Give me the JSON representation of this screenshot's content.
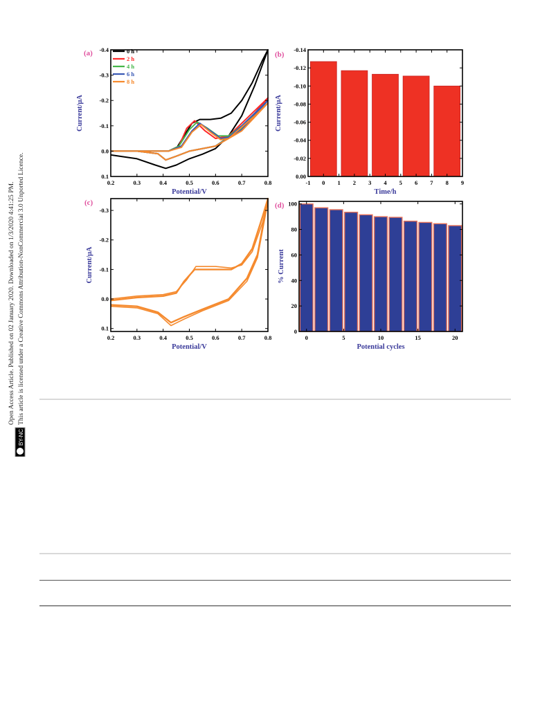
{
  "side_notice": {
    "line1": "Open Access Article. Published on 02 January 2020. Downloaded on 1/3/2020 4:41:25 PM.",
    "line2": "This article is licensed under a Creative Commons Attribution-NonCommercial 3.0 Unported Licence.",
    "license_badge": "cc BY-NC"
  },
  "colors": {
    "axis": "#000000",
    "axis_label": "#3a3a9a",
    "panel_letter": "#e0509e",
    "bar_red": "#ee3124",
    "bar_blue": "#2e3f96",
    "bar_blue_edge": "#e8735a",
    "cv_0h": "#000000",
    "cv_2h": "#ff2a2a",
    "cv_4h": "#45b64a",
    "cv_6h": "#3a5ab5",
    "cv_8h": "#f58a2e",
    "cv_cycles": "#f58a2e"
  },
  "chart_data": [
    {
      "panel": "(a)",
      "type": "line",
      "xlabel": "Potential/V",
      "ylabel": "Current/μA",
      "xlim": [
        0.2,
        0.8
      ],
      "ylim": [
        0.1,
        -0.4
      ],
      "xticks": [
        "0.2",
        "0.3",
        "0.4",
        "0.5",
        "0.6",
        "0.7",
        "0.8"
      ],
      "yticks": [
        "-0.4",
        "-0.3",
        "-0.2",
        "-0.1",
        "0.0",
        "0.1"
      ],
      "legend_position": "top-left",
      "series": [
        {
          "name": "0 h",
          "color_key": "cv_0h",
          "points": [
            [
              0.2,
              0.015
            ],
            [
              0.3,
              0.03
            ],
            [
              0.37,
              0.055
            ],
            [
              0.41,
              0.068
            ],
            [
              0.45,
              0.055
            ],
            [
              0.5,
              0.03
            ],
            [
              0.55,
              0.012
            ],
            [
              0.6,
              -0.01
            ],
            [
              0.65,
              -0.06
            ],
            [
              0.7,
              -0.14
            ],
            [
              0.75,
              -0.26
            ],
            [
              0.8,
              -0.4
            ],
            [
              0.78,
              -0.36
            ],
            [
              0.74,
              -0.27
            ],
            [
              0.7,
              -0.2
            ],
            [
              0.66,
              -0.15
            ],
            [
              0.62,
              -0.13
            ],
            [
              0.58,
              -0.125
            ],
            [
              0.54,
              -0.125
            ],
            [
              0.51,
              -0.11
            ],
            [
              0.48,
              -0.06
            ],
            [
              0.45,
              -0.01
            ],
            [
              0.42,
              0.0
            ],
            [
              0.35,
              0.0
            ],
            [
              0.2,
              0.0
            ]
          ]
        },
        {
          "name": "2 h",
          "color_key": "cv_2h",
          "points": [
            [
              0.2,
              0.0
            ],
            [
              0.3,
              0.0
            ],
            [
              0.38,
              0.01
            ],
            [
              0.41,
              0.035
            ],
            [
              0.45,
              0.02
            ],
            [
              0.5,
              0.0
            ],
            [
              0.6,
              -0.02
            ],
            [
              0.7,
              -0.09
            ],
            [
              0.8,
              -0.21
            ],
            [
              0.75,
              -0.16
            ],
            [
              0.7,
              -0.11
            ],
            [
              0.65,
              -0.06
            ],
            [
              0.6,
              -0.05
            ],
            [
              0.56,
              -0.08
            ],
            [
              0.52,
              -0.12
            ],
            [
              0.49,
              -0.09
            ],
            [
              0.46,
              -0.02
            ],
            [
              0.42,
              0.0
            ],
            [
              0.2,
              0.0
            ]
          ]
        },
        {
          "name": "4 h",
          "color_key": "cv_4h",
          "points": [
            [
              0.2,
              0.0
            ],
            [
              0.3,
              0.0
            ],
            [
              0.38,
              0.01
            ],
            [
              0.41,
              0.035
            ],
            [
              0.45,
              0.02
            ],
            [
              0.5,
              0.0
            ],
            [
              0.6,
              -0.02
            ],
            [
              0.7,
              -0.09
            ],
            [
              0.8,
              -0.2
            ],
            [
              0.75,
              -0.15
            ],
            [
              0.7,
              -0.1
            ],
            [
              0.65,
              -0.06
            ],
            [
              0.61,
              -0.06
            ],
            [
              0.57,
              -0.09
            ],
            [
              0.53,
              -0.115
            ],
            [
              0.5,
              -0.085
            ],
            [
              0.46,
              -0.02
            ],
            [
              0.42,
              0.0
            ],
            [
              0.2,
              0.0
            ]
          ]
        },
        {
          "name": "6 h",
          "color_key": "cv_6h",
          "points": [
            [
              0.2,
              0.0
            ],
            [
              0.3,
              0.0
            ],
            [
              0.38,
              0.01
            ],
            [
              0.41,
              0.035
            ],
            [
              0.45,
              0.02
            ],
            [
              0.5,
              0.0
            ],
            [
              0.6,
              -0.02
            ],
            [
              0.7,
              -0.085
            ],
            [
              0.8,
              -0.2
            ],
            [
              0.75,
              -0.15
            ],
            [
              0.7,
              -0.1
            ],
            [
              0.65,
              -0.055
            ],
            [
              0.62,
              -0.05
            ],
            [
              0.58,
              -0.08
            ],
            [
              0.54,
              -0.11
            ],
            [
              0.51,
              -0.08
            ],
            [
              0.47,
              -0.02
            ],
            [
              0.42,
              0.0
            ],
            [
              0.2,
              0.0
            ]
          ]
        },
        {
          "name": "8 h",
          "color_key": "cv_8h",
          "points": [
            [
              0.2,
              0.0
            ],
            [
              0.3,
              0.0
            ],
            [
              0.38,
              0.01
            ],
            [
              0.41,
              0.035
            ],
            [
              0.45,
              0.02
            ],
            [
              0.5,
              0.0
            ],
            [
              0.6,
              -0.02
            ],
            [
              0.7,
              -0.08
            ],
            [
              0.8,
              -0.19
            ],
            [
              0.75,
              -0.14
            ],
            [
              0.7,
              -0.095
            ],
            [
              0.65,
              -0.05
            ],
            [
              0.62,
              -0.045
            ],
            [
              0.58,
              -0.075
            ],
            [
              0.545,
              -0.105
            ],
            [
              0.51,
              -0.075
            ],
            [
              0.47,
              -0.015
            ],
            [
              0.42,
              0.0
            ],
            [
              0.2,
              0.0
            ]
          ]
        }
      ]
    },
    {
      "panel": "(b)",
      "type": "bar",
      "xlabel": "Time/h",
      "ylabel": "Current/μA",
      "xlim": [
        -1,
        9
      ],
      "ylim": [
        0.0,
        -0.14
      ],
      "xticks": [
        "-1",
        "0",
        "1",
        "2",
        "3",
        "4",
        "5",
        "6",
        "7",
        "8",
        "9"
      ],
      "yticks": [
        "0.00",
        "-0.02",
        "-0.04",
        "-0.06",
        "-0.08",
        "-0.10",
        "-0.12",
        "-0.14"
      ],
      "x": [
        0,
        2,
        4,
        6,
        8
      ],
      "values": [
        -0.127,
        -0.117,
        -0.113,
        -0.111,
        -0.1
      ],
      "color_key": "bar_red"
    },
    {
      "panel": "(c)",
      "type": "line",
      "xlabel": "Potential/V",
      "ylabel": "Current/μA",
      "xlim": [
        0.2,
        0.8
      ],
      "ylim": [
        0.11,
        -0.34
      ],
      "xticks": [
        "0.2",
        "0.3",
        "0.4",
        "0.5",
        "0.6",
        "0.7",
        "0.8"
      ],
      "yticks": [
        "-0.3",
        "-0.2",
        "-0.1",
        "0.0",
        "0.1"
      ],
      "series": [
        {
          "name": "",
          "color_key": "cv_cycles",
          "points": [
            [
              0.2,
              0.02
            ],
            [
              0.3,
              0.025
            ],
            [
              0.38,
              0.045
            ],
            [
              0.43,
              0.08
            ],
            [
              0.48,
              0.06
            ],
            [
              0.55,
              0.035
            ],
            [
              0.65,
              0.0
            ],
            [
              0.72,
              -0.07
            ],
            [
              0.76,
              -0.15
            ],
            [
              0.8,
              -0.34
            ],
            [
              0.78,
              -0.28
            ],
            [
              0.74,
              -0.17
            ],
            [
              0.7,
              -0.12
            ],
            [
              0.66,
              -0.1
            ],
            [
              0.6,
              -0.1
            ],
            [
              0.56,
              -0.1
            ],
            [
              0.52,
              -0.1
            ],
            [
              0.48,
              -0.06
            ],
            [
              0.45,
              -0.02
            ],
            [
              0.4,
              -0.01
            ],
            [
              0.3,
              -0.005
            ],
            [
              0.2,
              0.005
            ]
          ]
        },
        {
          "name": "",
          "color_key": "cv_cycles",
          "points": [
            [
              0.2,
              0.025
            ],
            [
              0.3,
              0.03
            ],
            [
              0.38,
              0.05
            ],
            [
              0.43,
              0.09
            ],
            [
              0.48,
              0.068
            ],
            [
              0.55,
              0.04
            ],
            [
              0.65,
              0.005
            ],
            [
              0.72,
              -0.06
            ],
            [
              0.76,
              -0.14
            ],
            [
              0.8,
              -0.33
            ],
            [
              0.78,
              -0.26
            ],
            [
              0.74,
              -0.16
            ],
            [
              0.7,
              -0.115
            ],
            [
              0.66,
              -0.105
            ],
            [
              0.6,
              -0.11
            ],
            [
              0.56,
              -0.11
            ],
            [
              0.525,
              -0.11
            ],
            [
              0.49,
              -0.065
            ],
            [
              0.45,
              -0.025
            ],
            [
              0.4,
              -0.015
            ],
            [
              0.3,
              -0.01
            ],
            [
              0.2,
              0.0
            ]
          ]
        }
      ]
    },
    {
      "panel": "(d)",
      "type": "bar",
      "xlabel": "Potential cycles",
      "ylabel": "% Current",
      "xlim": [
        -1,
        21
      ],
      "ylim": [
        0,
        102
      ],
      "xticks": [
        "0",
        "5",
        "10",
        "15",
        "20"
      ],
      "yticks": [
        "0",
        "20",
        "40",
        "60",
        "80",
        "100"
      ],
      "x": [
        0,
        2,
        4,
        6,
        8,
        10,
        12,
        14,
        16,
        18,
        20
      ],
      "values": [
        100,
        97,
        95.5,
        93.5,
        91.5,
        90,
        89.5,
        86.5,
        85.5,
        84.5,
        83
      ],
      "color_key": "bar_blue"
    }
  ]
}
